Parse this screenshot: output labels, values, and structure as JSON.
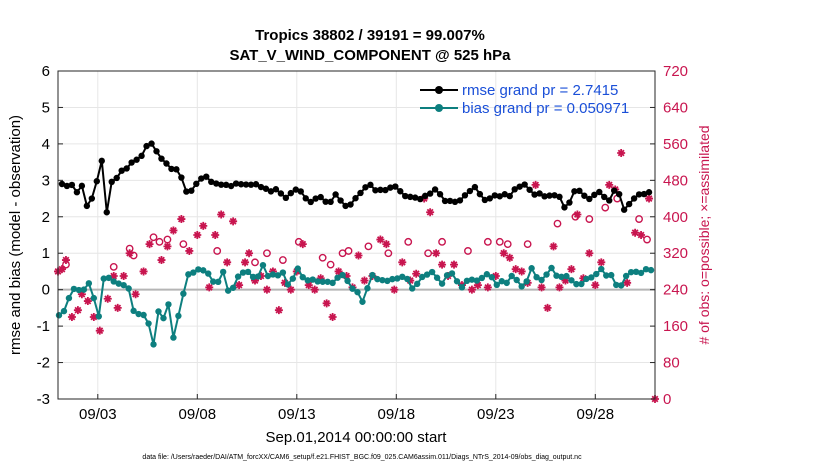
{
  "chart_data": {
    "type": "line",
    "title": [
      "Tropics 38802 / 39191 = 99.007%",
      "SAT_V_WIND_COMPONENT @ 525 hPa"
    ],
    "xlabel": "Sep.01,2014 00:00:00 start",
    "ylabel": "rmse and bias (model - observation)",
    "y2label": "# of obs: o=possible; ×=assimilated",
    "footnote": "data file: /Users/raeder/DAI/ATM_forcXX/CAM6_setup/f.e21.FHIST_BGC.f09_025.CAM6assim.011/Diags_NTrS_2014-09/obs_diag_output.nc",
    "xlim": [
      1.0,
      31.0
    ],
    "ylim": [
      -3,
      6
    ],
    "y2lim": [
      0,
      720
    ],
    "xticks": [
      3,
      8,
      13,
      18,
      23,
      28
    ],
    "xticklabels": [
      "09/03",
      "09/08",
      "09/13",
      "09/18",
      "09/23",
      "09/28"
    ],
    "yticks": [
      -3,
      -2,
      -1,
      0,
      1,
      2,
      3,
      4,
      5,
      6
    ],
    "y2ticks": [
      0,
      80,
      160,
      240,
      320,
      400,
      480,
      560,
      640,
      720
    ],
    "legend": {
      "location": "top-right",
      "entries": [
        "rmse grand pr = 2.7415",
        "bias grand pr = 0.050971"
      ]
    },
    "colors": {
      "rmse": "#000000",
      "bias": "#0d7f7f",
      "obs": "#c8154f",
      "zero": "#b5b5b5"
    },
    "rmse_key": [
      [
        1.2,
        2.9
      ],
      [
        1.8,
        2.9
      ],
      [
        2.0,
        2.6
      ],
      [
        2.2,
        2.9
      ],
      [
        2.5,
        2.2
      ],
      [
        2.8,
        2.7
      ],
      [
        3.1,
        3.3
      ],
      [
        3.25,
        3.6
      ],
      [
        3.4,
        2.0
      ],
      [
        3.7,
        3.0
      ],
      [
        4.3,
        3.3
      ],
      [
        4.9,
        3.6
      ],
      [
        5.3,
        3.7
      ],
      [
        5.6,
        4.2
      ],
      [
        5.9,
        3.8
      ],
      [
        6.5,
        3.4
      ],
      [
        7.1,
        3.2
      ],
      [
        7.5,
        2.6
      ],
      [
        8.2,
        3.1
      ],
      [
        9.3,
        2.9
      ],
      [
        10.5,
        2.9
      ],
      [
        11.3,
        2.8
      ],
      [
        12.0,
        2.7
      ],
      [
        12.5,
        2.5
      ],
      [
        13.1,
        2.8
      ],
      [
        13.6,
        2.3
      ],
      [
        14.1,
        2.6
      ],
      [
        14.6,
        2.3
      ],
      [
        15.0,
        2.6
      ],
      [
        15.5,
        2.2
      ],
      [
        16.0,
        2.5
      ],
      [
        16.5,
        2.9
      ],
      [
        17.0,
        2.7
      ],
      [
        18.0,
        2.8
      ],
      [
        18.6,
        2.5
      ],
      [
        19.0,
        2.5
      ],
      [
        20.0,
        2.7
      ],
      [
        20.6,
        2.4
      ],
      [
        21.3,
        2.5
      ],
      [
        22.0,
        2.9
      ],
      [
        22.3,
        2.4
      ],
      [
        22.8,
        2.6
      ],
      [
        23.7,
        2.6
      ],
      [
        24.3,
        2.9
      ],
      [
        25.0,
        2.6
      ],
      [
        25.7,
        2.6
      ],
      [
        26.1,
        2.6
      ],
      [
        26.5,
        2.2
      ],
      [
        27.0,
        2.8
      ],
      [
        27.7,
        2.5
      ],
      [
        28.2,
        2.7
      ],
      [
        28.7,
        2.5
      ],
      [
        29.1,
        2.8
      ],
      [
        29.5,
        2.1
      ],
      [
        30.0,
        2.6
      ],
      [
        30.8,
        2.7
      ]
    ],
    "bias_key": [
      [
        1.05,
        -0.7
      ],
      [
        1.3,
        -0.6
      ],
      [
        1.7,
        0.1
      ],
      [
        2.0,
        0.0
      ],
      [
        2.3,
        0.0
      ],
      [
        2.6,
        0.3
      ],
      [
        2.9,
        -0.6
      ],
      [
        3.1,
        -0.8
      ],
      [
        3.25,
        0.3
      ],
      [
        3.5,
        0.4
      ],
      [
        3.9,
        0.1
      ],
      [
        4.3,
        0.2
      ],
      [
        4.6,
        0.0
      ],
      [
        4.9,
        -0.8
      ],
      [
        5.2,
        -0.6
      ],
      [
        5.5,
        -0.7
      ],
      [
        5.75,
        -1.9
      ],
      [
        5.95,
        -0.3
      ],
      [
        6.2,
        -0.9
      ],
      [
        6.5,
        -0.3
      ],
      [
        6.8,
        -1.4
      ],
      [
        7.1,
        -0.5
      ],
      [
        7.5,
        0.3
      ],
      [
        7.9,
        0.6
      ],
      [
        8.4,
        0.5
      ],
      [
        8.9,
        0.2
      ],
      [
        9.3,
        0.4
      ],
      [
        9.6,
        -0.1
      ],
      [
        10.1,
        0.4
      ],
      [
        10.5,
        0.6
      ],
      [
        10.9,
        0.2
      ],
      [
        11.3,
        0.7
      ],
      [
        11.7,
        0.3
      ],
      [
        12.2,
        0.5
      ],
      [
        12.6,
        0.1
      ],
      [
        13.0,
        0.6
      ],
      [
        13.5,
        0.2
      ],
      [
        14.1,
        0.3
      ],
      [
        14.7,
        0.2
      ],
      [
        15.2,
        0.5
      ],
      [
        15.8,
        0.0
      ],
      [
        16.3,
        -0.3
      ],
      [
        16.8,
        0.4
      ],
      [
        17.3,
        0.2
      ],
      [
        17.8,
        0.3
      ],
      [
        18.3,
        0.4
      ],
      [
        18.8,
        0.1
      ],
      [
        19.3,
        0.3
      ],
      [
        19.8,
        0.4
      ],
      [
        20.3,
        0.1
      ],
      [
        20.7,
        0.5
      ],
      [
        21.2,
        0.1
      ],
      [
        21.6,
        0.3
      ],
      [
        22.1,
        0.3
      ],
      [
        22.6,
        0.4
      ],
      [
        23.2,
        0.1
      ],
      [
        23.8,
        0.4
      ],
      [
        24.3,
        0.1
      ],
      [
        24.8,
        0.5
      ],
      [
        25.3,
        0.2
      ],
      [
        25.8,
        0.6
      ],
      [
        26.3,
        0.3
      ],
      [
        26.8,
        0.3
      ],
      [
        27.2,
        0.2
      ],
      [
        27.8,
        0.3
      ],
      [
        28.3,
        0.5
      ],
      [
        28.7,
        0.4
      ],
      [
        29.2,
        0.1
      ],
      [
        29.7,
        0.6
      ],
      [
        30.3,
        0.4
      ],
      [
        30.8,
        0.6
      ]
    ],
    "obs_possible": [
      [
        1.4,
        295
      ],
      [
        3.8,
        290
      ],
      [
        4.6,
        330
      ],
      [
        4.8,
        315
      ],
      [
        5.8,
        355
      ],
      [
        6.1,
        345
      ],
      [
        6.5,
        350
      ],
      [
        7.3,
        340
      ],
      [
        9.0,
        325
      ],
      [
        10.9,
        300
      ],
      [
        11.5,
        320
      ],
      [
        12.3,
        305
      ],
      [
        13.1,
        345
      ],
      [
        14.3,
        310
      ],
      [
        14.7,
        295
      ],
      [
        15.3,
        320
      ],
      [
        15.6,
        325
      ],
      [
        16.6,
        335
      ],
      [
        17.6,
        320
      ],
      [
        18.6,
        345
      ],
      [
        19.6,
        320
      ],
      [
        20.3,
        345
      ],
      [
        21.6,
        325
      ],
      [
        22.6,
        345
      ],
      [
        23.2,
        345
      ],
      [
        23.6,
        340
      ],
      [
        24.6,
        340
      ],
      [
        26.1,
        385
      ],
      [
        27.0,
        400
      ],
      [
        27.7,
        395
      ],
      [
        28.5,
        420
      ],
      [
        29.1,
        440
      ],
      [
        30.2,
        395
      ],
      [
        30.6,
        350
      ]
    ],
    "obs_assimilated": [
      [
        1.0,
        280
      ],
      [
        1.2,
        285
      ],
      [
        1.4,
        305
      ],
      [
        1.7,
        180
      ],
      [
        2.0,
        195
      ],
      [
        2.2,
        230
      ],
      [
        2.5,
        215
      ],
      [
        2.8,
        180
      ],
      [
        3.1,
        150
      ],
      [
        3.5,
        220
      ],
      [
        3.8,
        270
      ],
      [
        4.0,
        200
      ],
      [
        4.3,
        270
      ],
      [
        4.6,
        320
      ],
      [
        4.9,
        230
      ],
      [
        5.3,
        280
      ],
      [
        5.6,
        340
      ],
      [
        6.2,
        305
      ],
      [
        6.5,
        335
      ],
      [
        6.8,
        370
      ],
      [
        7.2,
        395
      ],
      [
        7.6,
        325
      ],
      [
        8.0,
        360
      ],
      [
        8.3,
        380
      ],
      [
        8.6,
        245
      ],
      [
        8.9,
        360
      ],
      [
        9.2,
        405
      ],
      [
        9.5,
        300
      ],
      [
        9.8,
        390
      ],
      [
        10.1,
        250
      ],
      [
        10.4,
        300
      ],
      [
        10.6,
        320
      ],
      [
        10.9,
        260
      ],
      [
        11.2,
        270
      ],
      [
        11.5,
        240
      ],
      [
        11.8,
        280
      ],
      [
        12.1,
        195
      ],
      [
        12.4,
        255
      ],
      [
        12.7,
        240
      ],
      [
        13.0,
        280
      ],
      [
        13.3,
        340
      ],
      [
        13.6,
        250
      ],
      [
        13.9,
        240
      ],
      [
        14.2,
        265
      ],
      [
        14.5,
        210
      ],
      [
        14.8,
        180
      ],
      [
        15.1,
        280
      ],
      [
        15.5,
        270
      ],
      [
        15.8,
        245
      ],
      [
        16.1,
        315
      ],
      [
        16.4,
        260
      ],
      [
        16.8,
        270
      ],
      [
        17.2,
        350
      ],
      [
        17.5,
        340
      ],
      [
        17.9,
        240
      ],
      [
        18.3,
        300
      ],
      [
        18.7,
        260
      ],
      [
        19.0,
        275
      ],
      [
        19.4,
        440
      ],
      [
        19.7,
        410
      ],
      [
        20.0,
        320
      ],
      [
        20.3,
        295
      ],
      [
        20.6,
        270
      ],
      [
        20.9,
        295
      ],
      [
        21.3,
        250
      ],
      [
        21.8,
        240
      ],
      [
        22.1,
        250
      ],
      [
        22.6,
        245
      ],
      [
        23.0,
        270
      ],
      [
        23.4,
        320
      ],
      [
        23.7,
        310
      ],
      [
        24.0,
        285
      ],
      [
        24.3,
        280
      ],
      [
        24.6,
        255
      ],
      [
        25.0,
        470
      ],
      [
        25.3,
        245
      ],
      [
        25.6,
        200
      ],
      [
        25.9,
        335
      ],
      [
        26.2,
        245
      ],
      [
        26.5,
        260
      ],
      [
        26.8,
        285
      ],
      [
        27.1,
        405
      ],
      [
        27.4,
        265
      ],
      [
        27.7,
        320
      ],
      [
        28.0,
        250
      ],
      [
        28.3,
        300
      ],
      [
        28.7,
        470
      ],
      [
        29.0,
        460
      ],
      [
        29.3,
        540
      ],
      [
        29.6,
        255
      ],
      [
        30.0,
        365
      ],
      [
        30.3,
        360
      ],
      [
        30.7,
        440
      ],
      [
        31.0,
        0
      ]
    ]
  }
}
